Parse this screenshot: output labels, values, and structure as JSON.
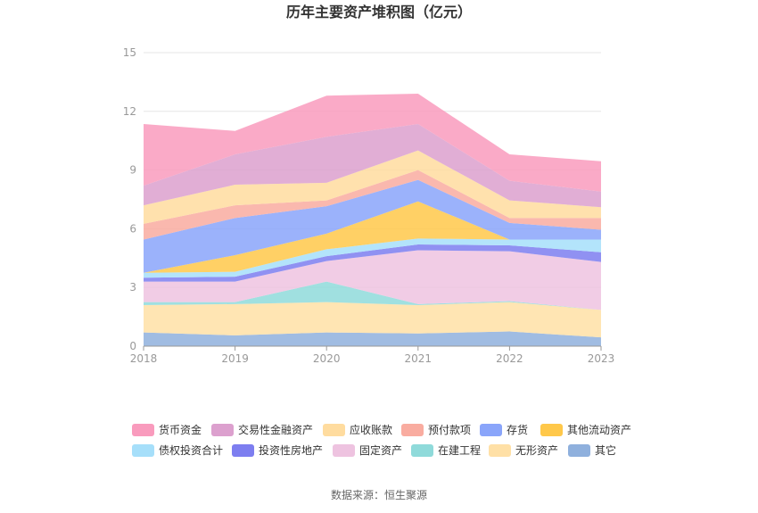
{
  "chart_data": {
    "type": "area",
    "stacked": true,
    "title": "历年主要资产堆积图（亿元）",
    "source": "数据来源：恒生聚源",
    "x": [
      "2018",
      "2019",
      "2020",
      "2021",
      "2022",
      "2023"
    ],
    "ylim": [
      0,
      15
    ],
    "yticks": [
      "0",
      "3",
      "6",
      "9",
      "12",
      "15"
    ],
    "grid": true,
    "legend_position": "bottom",
    "series": [
      {
        "name": "其它",
        "color": "#8fb0dd",
        "values": [
          0.7,
          0.55,
          0.7,
          0.65,
          0.75,
          0.45
        ]
      },
      {
        "name": "无形资产",
        "color": "#ffe0a6",
        "values": [
          1.4,
          1.6,
          1.55,
          1.45,
          1.5,
          1.4
        ]
      },
      {
        "name": "在建工程",
        "color": "#8fdada",
        "values": [
          0.15,
          0.1,
          1.05,
          0.05,
          0.05,
          0.0
        ]
      },
      {
        "name": "固定资产",
        "color": "#eec3e0",
        "values": [
          1.05,
          1.05,
          1.05,
          2.75,
          2.55,
          2.45
        ]
      },
      {
        "name": "投资性房地产",
        "color": "#7d7ef0",
        "values": [
          0.2,
          0.25,
          0.25,
          0.3,
          0.3,
          0.5
        ]
      },
      {
        "name": "债权投资合计",
        "color": "#a6dffa",
        "values": [
          0.25,
          0.25,
          0.35,
          0.3,
          0.3,
          0.65
        ]
      },
      {
        "name": "其他流动资产",
        "color": "#ffc84a",
        "values": [
          0.0,
          0.85,
          0.8,
          1.9,
          0.0,
          0.0
        ]
      },
      {
        "name": "存货",
        "color": "#8aa5fa",
        "values": [
          1.7,
          1.9,
          1.4,
          1.1,
          0.85,
          0.5
        ]
      },
      {
        "name": "预付款项",
        "color": "#f9aca0",
        "values": [
          0.8,
          0.65,
          0.3,
          0.5,
          0.25,
          0.6
        ]
      },
      {
        "name": "应收账款",
        "color": "#ffdc9f",
        "values": [
          0.95,
          1.05,
          0.9,
          1.0,
          0.9,
          0.55
        ]
      },
      {
        "name": "交易性金融资产",
        "color": "#dca0ce",
        "values": [
          1.0,
          1.55,
          2.35,
          1.35,
          1.0,
          0.8
        ]
      },
      {
        "name": "货币资金",
        "color": "#f99bbd",
        "values": [
          3.15,
          1.2,
          2.1,
          1.55,
          1.35,
          1.55
        ]
      }
    ],
    "legend_order": [
      "货币资金",
      "交易性金融资产",
      "应收账款",
      "预付款项",
      "存货",
      "其他流动资产",
      "债权投资合计",
      "投资性房地产",
      "固定资产",
      "在建工程",
      "无形资产",
      "其它"
    ]
  }
}
